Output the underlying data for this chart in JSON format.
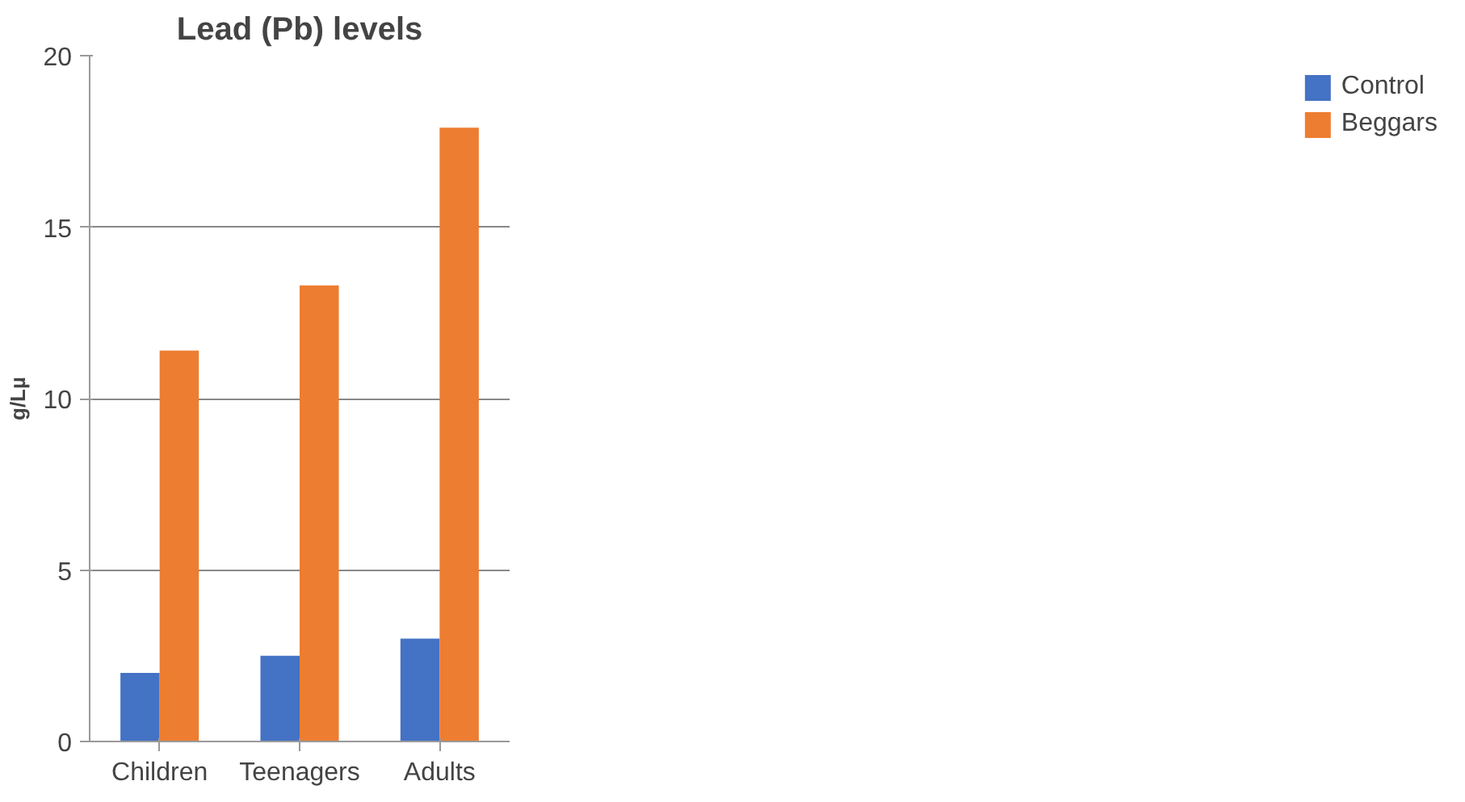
{
  "chart_data": {
    "type": "bar",
    "title": "Lead (Pb) levels",
    "ylabel": "g/Lµ",
    "categories": [
      "Children",
      "Teenagers",
      "Adults"
    ],
    "series": [
      {
        "name": "Control",
        "color": "#4472c4",
        "values": [
          2.0,
          2.5,
          3.0
        ]
      },
      {
        "name": "Beggars",
        "color": "#ed7d31",
        "values": [
          11.4,
          13.3,
          17.9
        ]
      }
    ],
    "ylim": [
      0,
      20
    ],
    "yticks": [
      0,
      5,
      10,
      15,
      20
    ],
    "grid": "y",
    "legend": "right"
  }
}
